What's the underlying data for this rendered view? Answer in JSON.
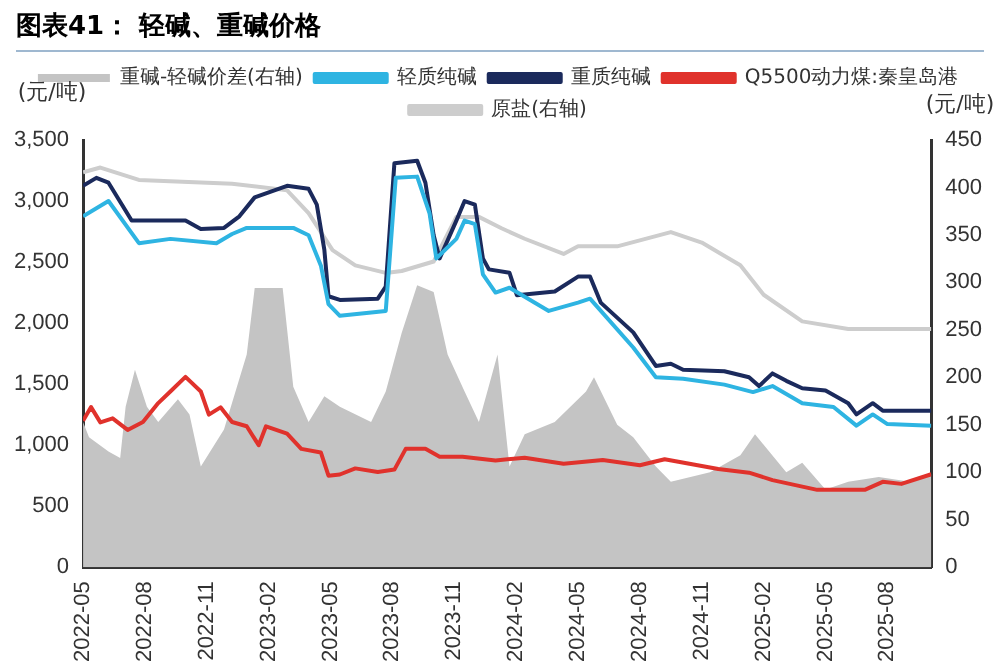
{
  "chart_data": {
    "type": "line",
    "title": "图表41：  轻碱、重碱价格",
    "ylabel": "(元/吨)",
    "y2label": "(元/吨)",
    "xlim": [
      "2022-05-01",
      "2025-10-05"
    ],
    "xticks": [
      "2022-05",
      "2022-08",
      "2022-11",
      "2023-02",
      "2023-05",
      "2023-08",
      "2023-11",
      "2024-02",
      "2024-05",
      "2024-08",
      "2024-11",
      "2025-02",
      "2025-05",
      "2025-08"
    ],
    "ylim": [
      0,
      3500
    ],
    "yticks": [
      {
        "value": 0,
        "label": "0"
      },
      {
        "value": 500,
        "label": "500"
      },
      {
        "value": 1000,
        "label": "1,000"
      },
      {
        "value": 1500,
        "label": "1,500"
      },
      {
        "value": 2000,
        "label": "2,000"
      },
      {
        "value": 2500,
        "label": "2,500"
      },
      {
        "value": 3000,
        "label": "3,000"
      },
      {
        "value": 3500,
        "label": "3,500"
      }
    ],
    "y2lim": [
      0,
      450
    ],
    "y2ticks": [
      0,
      50,
      100,
      150,
      200,
      250,
      300,
      350,
      400,
      450
    ],
    "legend": "top",
    "grid": false,
    "marker": "none",
    "series": [
      {
        "name": "重碱-轻碱价差(右轴)",
        "type": "area",
        "axis": "y2",
        "color": "#c4c4c4",
        "x": [
          "2022-05-01",
          "2022-05-10",
          "2022-06-08",
          "2022-06-25",
          "2022-07-03",
          "2022-07-17",
          "2022-08-04",
          "2022-08-21",
          "2022-09-19",
          "2022-10-06",
          "2022-10-23",
          "2022-11-26",
          "2022-12-30",
          "2023-01-11",
          "2023-02-20",
          "2023-03-07",
          "2023-03-30",
          "2023-04-22",
          "2023-05-15",
          "2023-06-30",
          "2023-07-22",
          "2023-08-15",
          "2023-09-07",
          "2023-10-01",
          "2023-10-22",
          "2023-11-16",
          "2023-12-07",
          "2024-01-04",
          "2024-01-22",
          "2024-02-13",
          "2024-03-28",
          "2024-05-13",
          "2024-05-25",
          "2024-06-28",
          "2024-07-22",
          "2024-08-25",
          "2024-09-16",
          "2024-11-13",
          "2024-12-28",
          "2025-01-19",
          "2025-03-04",
          "2025-03-28",
          "2025-05-01",
          "2025-06-04",
          "2025-07-19",
          "2025-09-04",
          "2025-10-05"
        ],
        "values": [
          153,
          137,
          122,
          115,
          169,
          208,
          169,
          153,
          177,
          161,
          106,
          145,
          224,
          294,
          294,
          190,
          153,
          180,
          169,
          153,
          185,
          247,
          297,
          290,
          224,
          185,
          153,
          224,
          106,
          140,
          153,
          185,
          200,
          150,
          137,
          106,
          90,
          100,
          118,
          140,
          100,
          110,
          82,
          90,
          95,
          90,
          98
        ]
      },
      {
        "name": "轻质纯碱",
        "color": "#2eb4e2",
        "x": [
          "2022-05-01",
          "2022-06-08",
          "2022-07-23",
          "2022-09-08",
          "2022-11-15",
          "2022-12-08",
          "2022-12-30",
          "2023-03-07",
          "2023-03-30",
          "2023-04-17",
          "2023-04-28",
          "2023-05-15",
          "2023-07-22",
          "2023-08-06",
          "2023-09-07",
          "2023-09-25",
          "2023-10-05",
          "2023-11-04",
          "2023-11-16",
          "2023-12-01",
          "2023-12-13",
          "2024-01-01",
          "2024-01-22",
          "2024-03-19",
          "2024-05-01",
          "2024-05-19",
          "2024-07-22",
          "2024-08-25",
          "2024-10-04",
          "2024-12-04",
          "2025-01-16",
          "2025-02-13",
          "2025-03-28",
          "2025-05-13",
          "2025-06-16",
          "2025-07-10",
          "2025-08-01",
          "2025-10-05"
        ],
        "values": [
          2875,
          3000,
          2655,
          2690,
          2655,
          2730,
          2780,
          2780,
          2720,
          2470,
          2155,
          2060,
          2100,
          3190,
          3200,
          2900,
          2530,
          2690,
          2840,
          2810,
          2400,
          2250,
          2290,
          2100,
          2168,
          2200,
          1800,
          1557,
          1545,
          1496,
          1435,
          1484,
          1344,
          1313,
          1160,
          1252,
          1173,
          1160
        ]
      },
      {
        "name": "重质纯碱",
        "color": "#1b2a5c",
        "x": [
          "2022-05-01",
          "2022-05-21",
          "2022-06-08",
          "2022-07-12",
          "2022-09-30",
          "2022-10-23",
          "2022-11-26",
          "2022-12-19",
          "2023-01-11",
          "2023-02-26",
          "2023-03-30",
          "2023-04-11",
          "2023-04-22",
          "2023-04-28",
          "2023-05-15",
          "2023-07-10",
          "2023-07-22",
          "2023-08-04",
          "2023-09-07",
          "2023-09-19",
          "2023-10-01",
          "2023-10-10",
          "2023-11-04",
          "2023-11-16",
          "2023-12-01",
          "2023-12-13",
          "2023-12-22",
          "2024-01-22",
          "2024-02-02",
          "2024-03-28",
          "2024-05-01",
          "2024-05-19",
          "2024-06-04",
          "2024-07-22",
          "2024-08-25",
          "2024-09-16",
          "2024-10-04",
          "2024-12-04",
          "2025-01-10",
          "2025-01-25",
          "2025-02-13",
          "2025-03-04",
          "2025-03-28",
          "2025-05-01",
          "2025-06-04",
          "2025-06-16",
          "2025-07-10",
          "2025-07-25",
          "2025-10-05"
        ],
        "values": [
          3125,
          3190,
          3150,
          2840,
          2840,
          2770,
          2780,
          2875,
          3030,
          3125,
          3100,
          2970,
          2600,
          2220,
          2190,
          2200,
          2300,
          3310,
          3330,
          3150,
          2720,
          2530,
          2840,
          3000,
          2970,
          2530,
          2440,
          2412,
          2229,
          2259,
          2381,
          2381,
          2168,
          1924,
          1649,
          1667,
          1618,
          1606,
          1557,
          1484,
          1588,
          1527,
          1466,
          1448,
          1344,
          1252,
          1344,
          1283,
          1283
        ]
      },
      {
        "name": "Q5500动力煤:秦皇岛港",
        "color": "#e0322c",
        "x": [
          "2022-05-01",
          "2022-05-13",
          "2022-05-27",
          "2022-06-14",
          "2022-07-06",
          "2022-07-29",
          "2022-08-21",
          "2022-09-08",
          "2022-09-30",
          "2022-10-23",
          "2022-11-04",
          "2022-11-21",
          "2022-12-08",
          "2022-12-30",
          "2023-01-17",
          "2023-01-28",
          "2023-02-26",
          "2023-03-19",
          "2023-04-17",
          "2023-04-28",
          "2023-05-15",
          "2023-06-07",
          "2023-07-10",
          "2023-08-04",
          "2023-08-21",
          "2023-09-19",
          "2023-10-10",
          "2023-11-13",
          "2024-01-01",
          "2024-02-13",
          "2024-04-10",
          "2024-06-07",
          "2024-08-01",
          "2024-09-07",
          "2024-11-25",
          "2025-01-10",
          "2025-02-13",
          "2025-04-19",
          "2025-06-28",
          "2025-07-25",
          "2025-08-22",
          "2025-10-05"
        ],
        "values": [
          1200,
          1312,
          1187,
          1220,
          1125,
          1190,
          1345,
          1440,
          1560,
          1440,
          1250,
          1310,
          1190,
          1155,
          1000,
          1155,
          1094,
          970,
          940,
          750,
          760,
          810,
          780,
          800,
          970,
          970,
          906,
          906,
          875,
          897,
          848,
          878,
          836,
          885,
          805,
          775,
          714,
          634,
          634,
          700,
          683,
          762
        ]
      },
      {
        "name": "原盐(右轴)",
        "axis": "y2",
        "color": "#cdcdcd",
        "x": [
          "2022-05-01",
          "2022-05-27",
          "2022-07-23",
          "2022-12-08",
          "2023-02-26",
          "2023-03-30",
          "2023-05-04",
          "2023-06-07",
          "2023-07-22",
          "2023-08-15",
          "2023-10-01",
          "2023-11-04",
          "2023-12-07",
          "2024-01-10",
          "2024-02-13",
          "2024-04-10",
          "2024-05-01",
          "2024-06-28",
          "2024-09-16",
          "2024-11-01",
          "2024-12-28",
          "2025-02-01",
          "2025-03-28",
          "2025-06-04",
          "2025-10-05"
        ],
        "values": [
          416,
          421,
          408,
          404,
          397,
          373,
          334,
          318,
          310,
          312,
          322,
          369,
          369,
          357,
          346,
          330,
          338,
          338,
          353,
          342,
          318,
          287,
          259,
          251,
          251
        ]
      }
    ]
  }
}
